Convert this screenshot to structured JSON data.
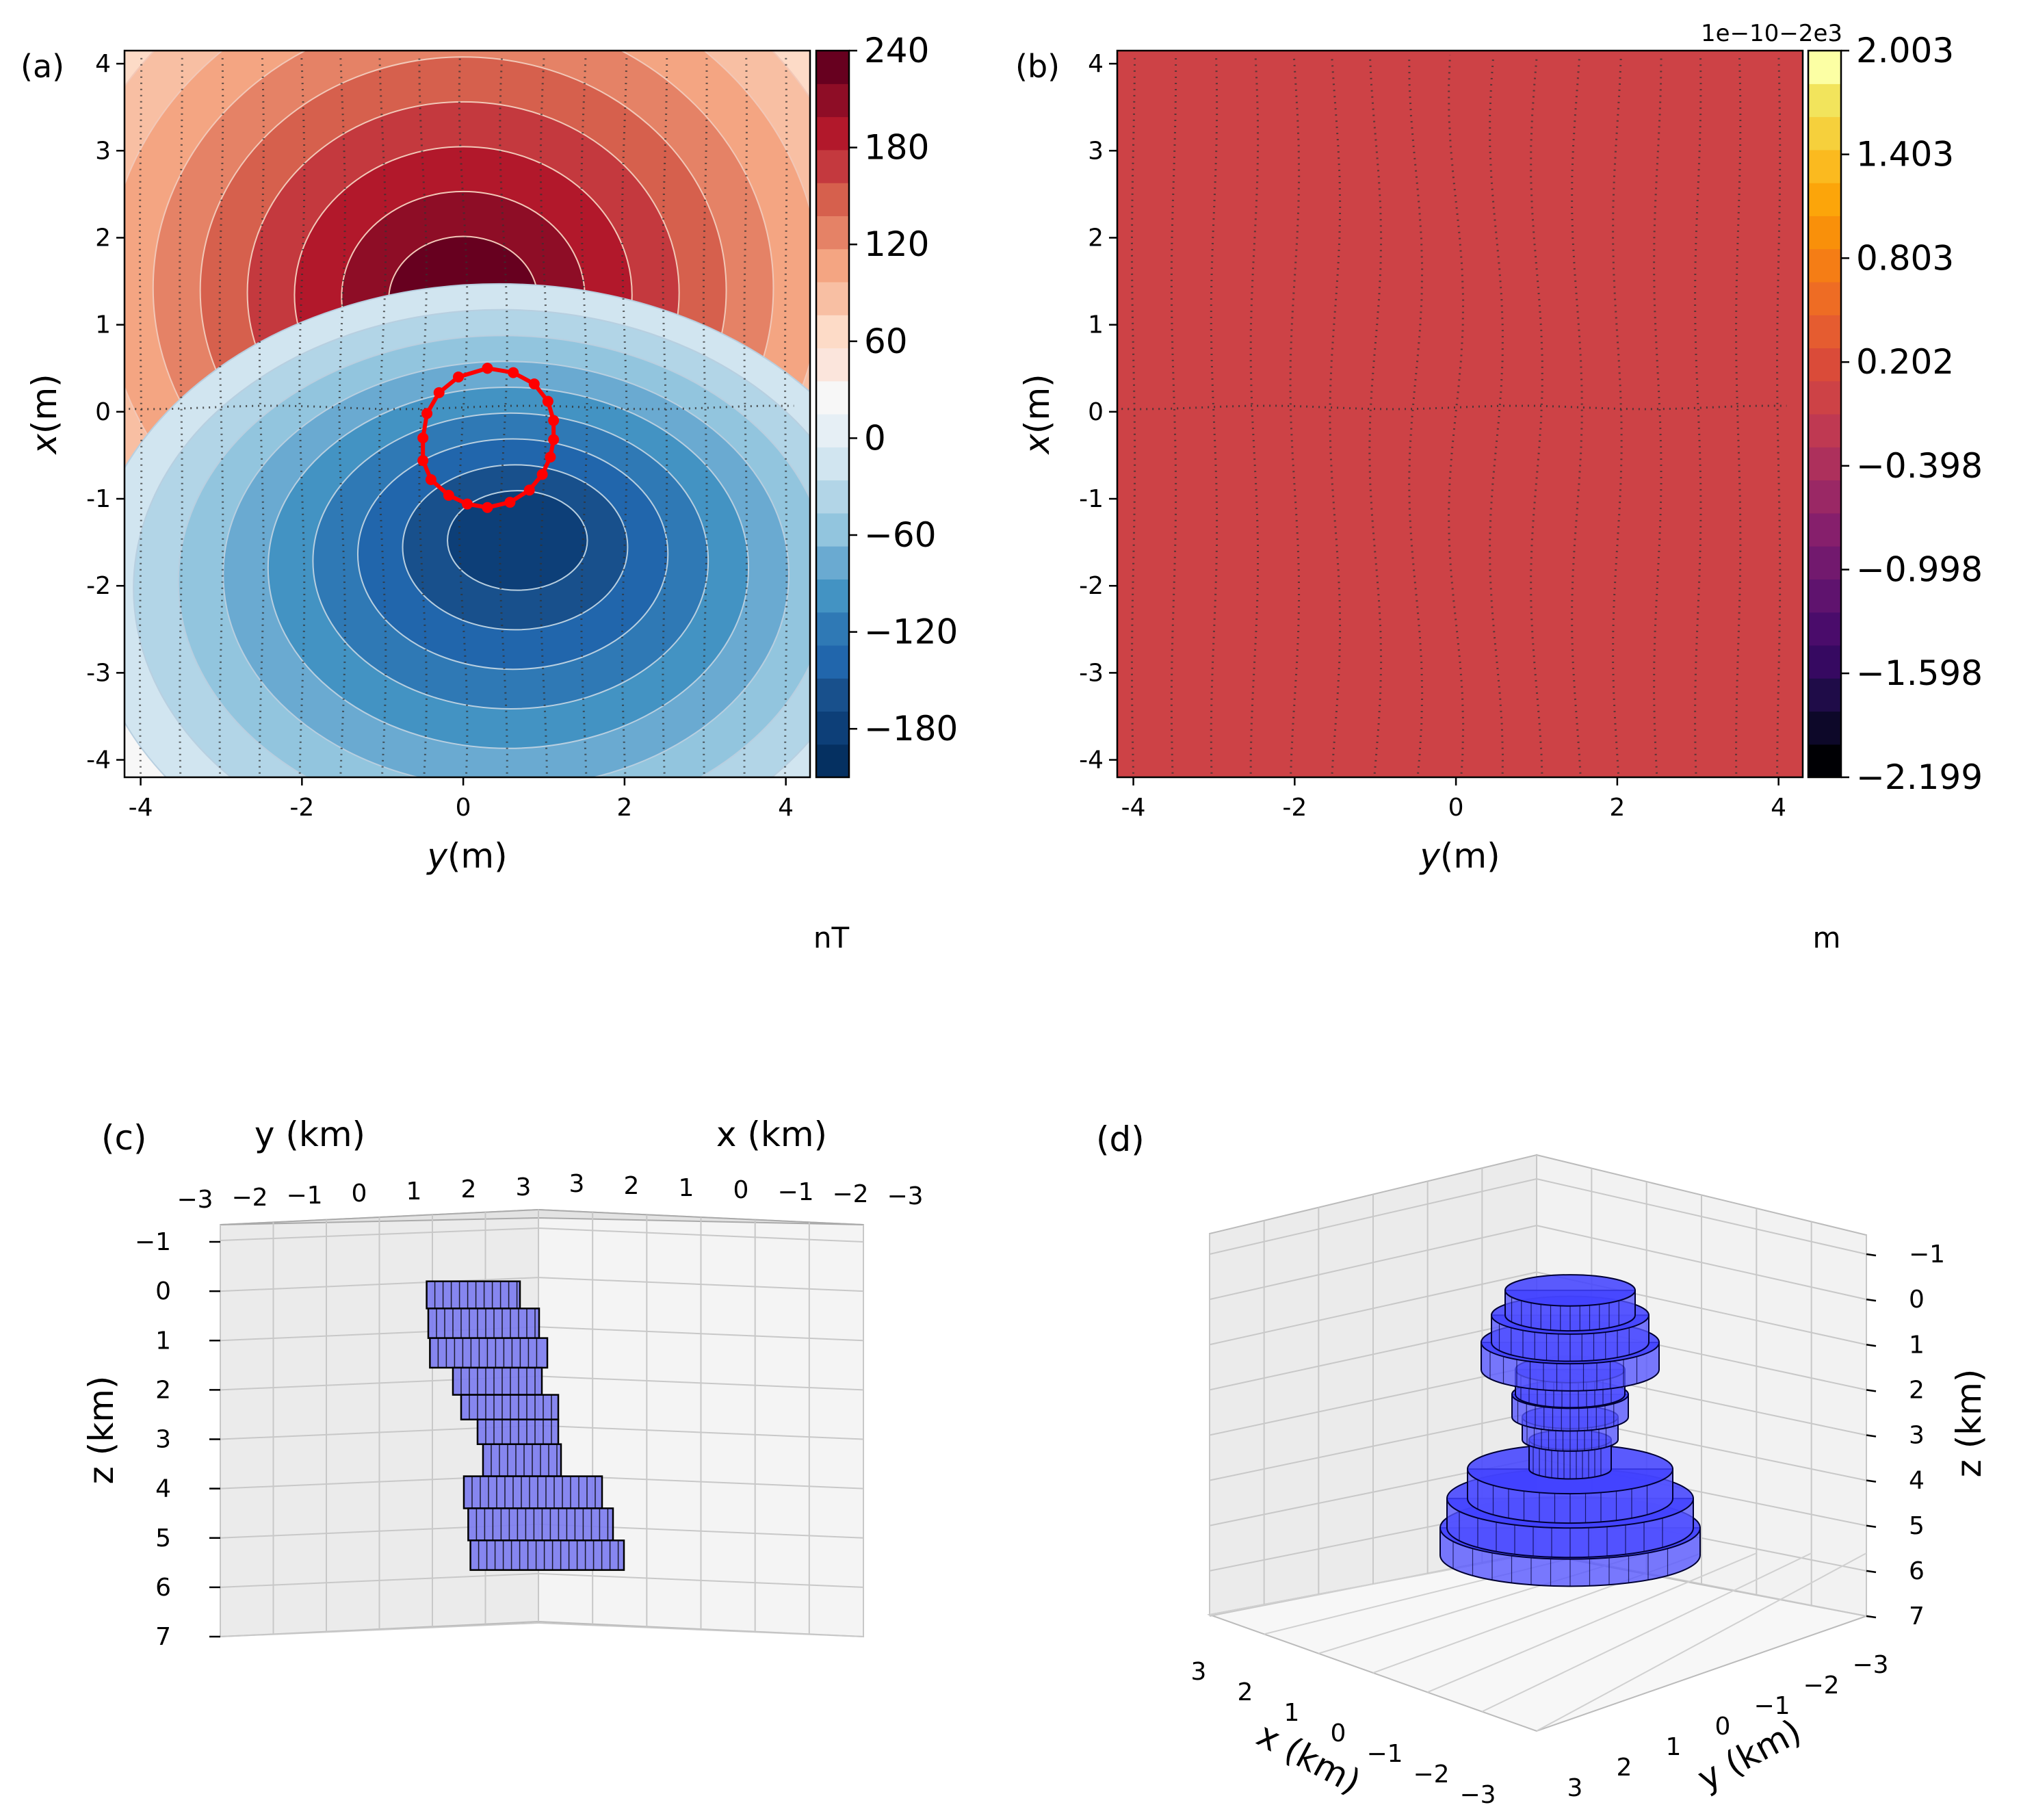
{
  "figure": {
    "background": "#ffffff",
    "panels": [
      {
        "id": "a",
        "label": "(a)",
        "type": "contourf",
        "xlabel_var": "y",
        "xlabel_unit": "(m)",
        "ylabel_var": "x",
        "ylabel_unit": "(m)",
        "xticks": [
          "-4",
          "-2",
          "0",
          "2",
          "4"
        ],
        "xtick_values": [
          -4,
          -2,
          0,
          2,
          4
        ],
        "yticks": [
          "4",
          "3",
          "2",
          "1",
          "0",
          "-1",
          "-2",
          "-3",
          "-4"
        ],
        "ytick_values": [
          4,
          3,
          2,
          1,
          0,
          -1,
          -2,
          -3,
          -4
        ],
        "xlim": [
          -4.2,
          4.3
        ],
        "ylim": [
          -4.2,
          4.15
        ],
        "colormap": "RdBu_r",
        "colorbar_ticks": [
          "240",
          "180",
          "120",
          "60",
          "0",
          "−60",
          "−120",
          "−180"
        ],
        "colorbar_tick_values": [
          240,
          180,
          120,
          60,
          0,
          -60,
          -120,
          -180
        ],
        "colorbar_range": [
          -210,
          240
        ],
        "colorbar_colors": [
          "#053061",
          "#0d3f78",
          "#18508c",
          "#2166ac",
          "#2f79b5",
          "#4393c3",
          "#6aaad1",
          "#92c5de",
          "#b2d5e7",
          "#d1e5f0",
          "#e6eff5",
          "#f7f7f7",
          "#fbe5dc",
          "#fddbc7",
          "#f8bfa3",
          "#f4a582",
          "#e58266",
          "#d6604d",
          "#c4393e",
          "#b2182b",
          "#8e0d26",
          "#67001f"
        ],
        "unit": "nT",
        "dipole": {
          "max_value": 235,
          "max_x": 1.5,
          "max_y": 0.0,
          "min_value": -200,
          "min_x": -1.4,
          "min_y": 0.7
        },
        "polygon_color": "#ff0000",
        "polygon_vertices_xy": [
          [
            0.5,
            0.3
          ],
          [
            0.45,
            0.62
          ],
          [
            0.32,
            0.88
          ],
          [
            0.12,
            1.05
          ],
          [
            -0.1,
            1.12
          ],
          [
            -0.32,
            1.12
          ],
          [
            -0.52,
            1.08
          ],
          [
            -0.72,
            0.98
          ],
          [
            -0.9,
            0.82
          ],
          [
            -1.04,
            0.58
          ],
          [
            -1.1,
            0.3
          ],
          [
            -1.06,
            0.05
          ],
          [
            -0.96,
            -0.18
          ],
          [
            -0.78,
            -0.4
          ],
          [
            -0.56,
            -0.5
          ],
          [
            -0.3,
            -0.5
          ],
          [
            -0.02,
            -0.45
          ],
          [
            0.22,
            -0.3
          ],
          [
            0.4,
            -0.06
          ],
          [
            0.5,
            0.3
          ]
        ]
      },
      {
        "id": "b",
        "label": "(b)",
        "type": "contourf",
        "xlabel_var": "y",
        "xlabel_unit": "(m)",
        "ylabel_var": "x",
        "ylabel_unit": "(m)",
        "xticks": [
          "-4",
          "-2",
          "0",
          "2",
          "4"
        ],
        "xtick_values": [
          -4,
          -2,
          0,
          2,
          4
        ],
        "yticks": [
          "4",
          "3",
          "2",
          "1",
          "0",
          "-1",
          "-2",
          "-3",
          "-4"
        ],
        "ytick_values": [
          4,
          3,
          2,
          1,
          0,
          -1,
          -2,
          -3,
          -4
        ],
        "xlim": [
          -4.2,
          4.3
        ],
        "ylim": [
          -4.2,
          4.15
        ],
        "colormap": "inferno",
        "fill_color": "#cd4246",
        "offset_text": "1e−10−2e3",
        "colorbar_ticks": [
          "2.003",
          "1.403",
          "0.803",
          "0.202",
          "−0.398",
          "−0.998",
          "−1.598",
          "−2.199"
        ],
        "colorbar_tick_values": [
          2.003,
          1.403,
          0.803,
          0.202,
          -0.398,
          -0.998,
          -1.598,
          -2.199
        ],
        "colorbar_range": [
          -2.199,
          2.003
        ],
        "colorbar_colors": [
          "#000004",
          "#0d0829",
          "#1f0c48",
          "#360961",
          "#4a0c6b",
          "#5f136e",
          "#72196e",
          "#861f6c",
          "#9a2865",
          "#ad305c",
          "#bf3952",
          "#cd4246",
          "#da4b39",
          "#e55c30",
          "#ee6c24",
          "#f57d15",
          "#f9900a",
          "#fca50a",
          "#fbba1f",
          "#f6d03c",
          "#f2e45c",
          "#fcffa4"
        ],
        "unit": "m"
      },
      {
        "id": "c",
        "label": "(c)",
        "type": "3d-prisms",
        "view": "side",
        "top_left_axis_label": "y (km)",
        "top_right_axis_label": "x (km)",
        "zlabel": "z (km)",
        "top_left_ticks": [
          "−3",
          "−2",
          "−1",
          "0",
          "1",
          "2",
          "3"
        ],
        "top_right_ticks": [
          "3",
          "2",
          "1",
          "0",
          "−1",
          "−2",
          "−3"
        ],
        "zticks": [
          "−1",
          "0",
          "1",
          "2",
          "3",
          "4",
          "5",
          "6",
          "7"
        ],
        "ztick_values": [
          -1,
          0,
          1,
          2,
          3,
          4,
          5,
          6,
          7
        ],
        "zlim": [
          -1,
          7
        ],
        "prism_face": "#7b7bf0",
        "prism_edge": "#000000",
        "prisms": [
          {
            "z_top": -0.2,
            "z_bottom": 0.35,
            "h_left": -0.48,
            "h_right": 0.6
          },
          {
            "z_top": 0.35,
            "z_bottom": 0.95,
            "h_left": -0.45,
            "h_right": 0.95
          },
          {
            "z_top": 0.95,
            "z_bottom": 1.55,
            "h_left": -0.42,
            "h_right": 1.1
          },
          {
            "z_top": 1.55,
            "z_bottom": 2.1,
            "h_left": 0.0,
            "h_right": 1.0
          },
          {
            "z_top": 2.1,
            "z_bottom": 2.6,
            "h_left": 0.15,
            "h_right": 1.3
          },
          {
            "z_top": 2.6,
            "z_bottom": 3.1,
            "h_left": 0.45,
            "h_right": 1.3
          },
          {
            "z_top": 3.1,
            "z_bottom": 3.75,
            "h_left": 0.55,
            "h_right": 1.35
          },
          {
            "z_top": 3.75,
            "z_bottom": 4.4,
            "h_left": 0.2,
            "h_right": 2.1
          },
          {
            "z_top": 4.4,
            "z_bottom": 5.05,
            "h_left": 0.28,
            "h_right": 2.3
          },
          {
            "z_top": 5.05,
            "z_bottom": 5.65,
            "h_left": 0.32,
            "h_right": 2.5
          }
        ]
      },
      {
        "id": "d",
        "label": "(d)",
        "type": "3d-prisms",
        "view": "oblique",
        "xlabel": "x (km)",
        "ylabel": "y (km)",
        "zlabel": "z (km)",
        "xticks": [
          "3",
          "2",
          "1",
          "0",
          "−1",
          "−2",
          "−3"
        ],
        "yticks": [
          "3",
          "2",
          "1",
          "0",
          "−1",
          "−2",
          "−3"
        ],
        "zticks": [
          "−1",
          "0",
          "1",
          "2",
          "3",
          "4",
          "5",
          "6",
          "7"
        ],
        "ztick_values": [
          -1,
          0,
          1,
          2,
          3,
          4,
          5,
          6,
          7
        ],
        "zlim": [
          -1,
          7
        ],
        "prism_face": "#5555ff",
        "prism_edge": "#000033",
        "prisms": [
          {
            "z_top": -0.2,
            "z_bottom": 0.35,
            "hw": 0.95
          },
          {
            "z_top": 0.35,
            "z_bottom": 0.95,
            "hw": 1.15
          },
          {
            "z_top": 0.95,
            "z_bottom": 1.55,
            "hw": 1.3
          },
          {
            "z_top": 1.55,
            "z_bottom": 2.1,
            "hw": 0.8
          },
          {
            "z_top": 2.1,
            "z_bottom": 2.6,
            "hw": 0.85
          },
          {
            "z_top": 2.6,
            "z_bottom": 3.1,
            "hw": 0.7
          },
          {
            "z_top": 3.1,
            "z_bottom": 3.75,
            "hw": 0.6
          },
          {
            "z_top": 3.75,
            "z_bottom": 4.4,
            "hw": 1.5
          },
          {
            "z_top": 4.4,
            "z_bottom": 5.05,
            "hw": 1.8
          },
          {
            "z_top": 5.05,
            "z_bottom": 5.65,
            "hw": 1.9
          }
        ]
      }
    ]
  }
}
